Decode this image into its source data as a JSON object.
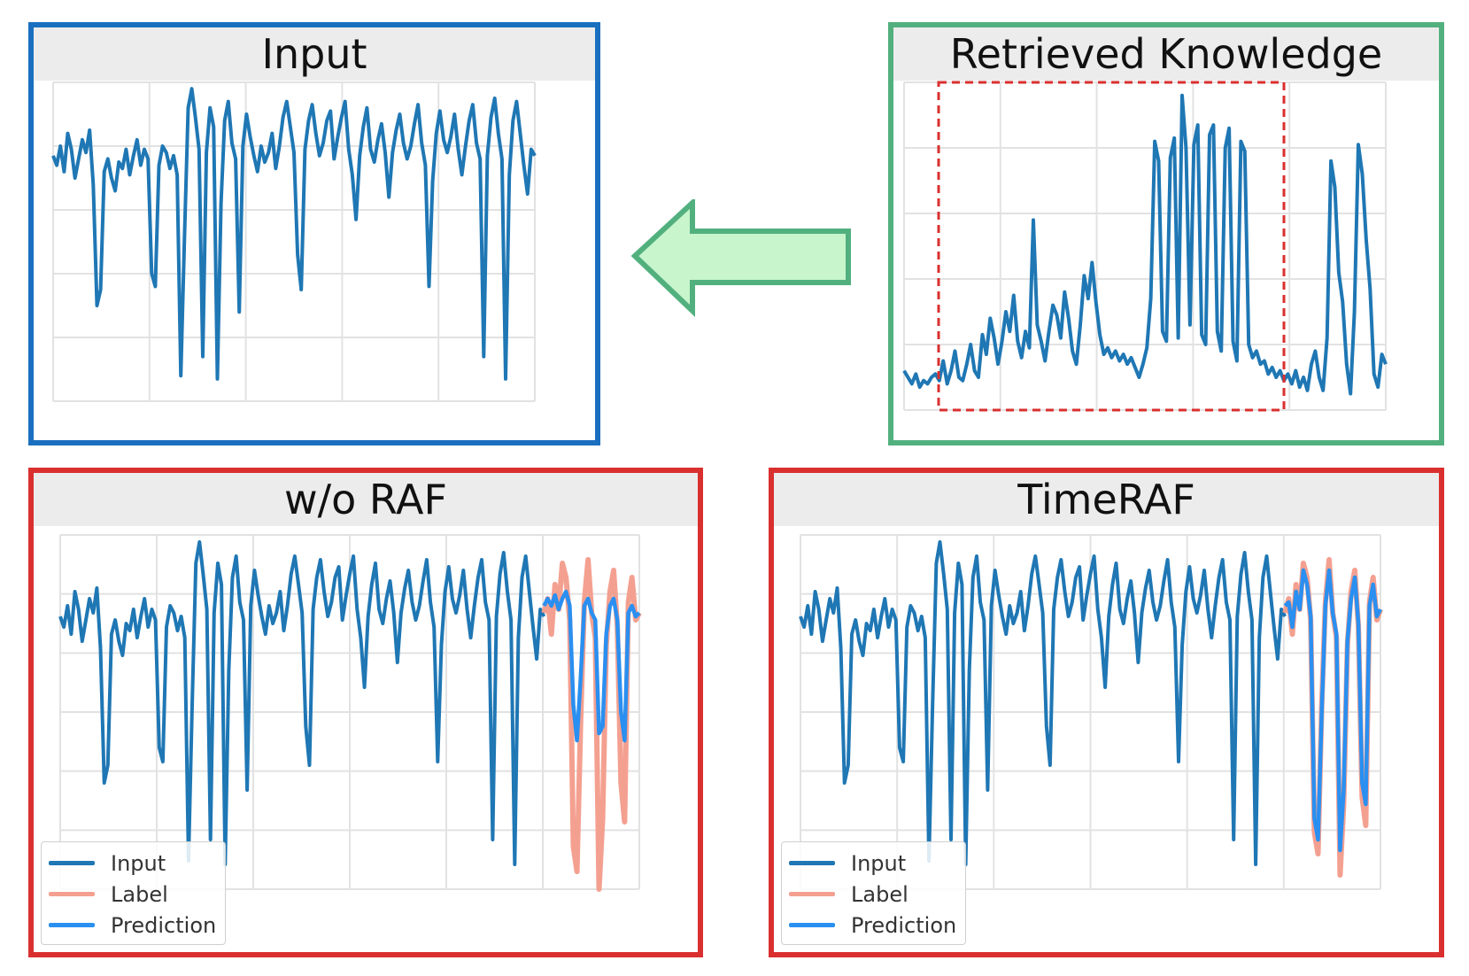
{
  "panels": {
    "input": {
      "title": "Input"
    },
    "knowledge": {
      "title": "Retrieved Knowledge"
    },
    "worag": {
      "title": "w/o RAF"
    },
    "timeraf": {
      "title": "TimeRAF"
    }
  },
  "legend": {
    "input": "Input",
    "label": "Label",
    "prediction": "Prediction"
  },
  "colors": {
    "input_border": "#1a6fbf",
    "knowledge_border": "#52b07f",
    "result_border": "#d9302f",
    "series_input": "#1f77b4",
    "series_label": "#f4a090",
    "series_prediction": "#2a8ff0",
    "arrow_fill": "#c8f5cc",
    "arrow_stroke": "#52b07f",
    "highlight_box": "#d9302f"
  },
  "chart_data": [
    {
      "type": "line",
      "title": "Input",
      "series": [
        {
          "name": "",
          "values": [
            0.77,
            0.74,
            0.8,
            0.72,
            0.84,
            0.79,
            0.7,
            0.76,
            0.82,
            0.78,
            0.85,
            0.68,
            0.3,
            0.35,
            0.72,
            0.76,
            0.7,
            0.66,
            0.75,
            0.73,
            0.79,
            0.71,
            0.77,
            0.82,
            0.74,
            0.79,
            0.76,
            0.4,
            0.36,
            0.74,
            0.8,
            0.78,
            0.73,
            0.77,
            0.71,
            0.08,
            0.52,
            0.92,
            0.98,
            0.89,
            0.79,
            0.14,
            0.78,
            0.92,
            0.86,
            0.07,
            0.62,
            0.88,
            0.94,
            0.81,
            0.76,
            0.28,
            0.8,
            0.9,
            0.83,
            0.77,
            0.72,
            0.8,
            0.75,
            0.78,
            0.84,
            0.73,
            0.8,
            0.89,
            0.94,
            0.86,
            0.78,
            0.46,
            0.35,
            0.79,
            0.88,
            0.93,
            0.84,
            0.77,
            0.81,
            0.88,
            0.91,
            0.76,
            0.83,
            0.89,
            0.94,
            0.79,
            0.71,
            0.57,
            0.77,
            0.86,
            0.92,
            0.79,
            0.75,
            0.82,
            0.87,
            0.78,
            0.64,
            0.78,
            0.85,
            0.9,
            0.81,
            0.76,
            0.8,
            0.87,
            0.93,
            0.81,
            0.74,
            0.36,
            0.69,
            0.84,
            0.91,
            0.82,
            0.78,
            0.83,
            0.9,
            0.79,
            0.71,
            0.8,
            0.88,
            0.93,
            0.81,
            0.76,
            0.14,
            0.77,
            0.89,
            0.95,
            0.84,
            0.76,
            0.07,
            0.71,
            0.88,
            0.94,
            0.84,
            0.74,
            0.65,
            0.79,
            0.77
          ]
        }
      ]
    },
    {
      "type": "line",
      "title": "Retrieved Knowledge",
      "series": [
        {
          "name": "",
          "values": [
            0.12,
            0.1,
            0.08,
            0.11,
            0.07,
            0.09,
            0.08,
            0.1,
            0.11,
            0.09,
            0.15,
            0.08,
            0.12,
            0.18,
            0.1,
            0.09,
            0.14,
            0.2,
            0.12,
            0.1,
            0.23,
            0.17,
            0.28,
            0.22,
            0.14,
            0.21,
            0.3,
            0.24,
            0.35,
            0.21,
            0.16,
            0.24,
            0.19,
            0.58,
            0.26,
            0.21,
            0.15,
            0.24,
            0.32,
            0.29,
            0.22,
            0.36,
            0.28,
            0.18,
            0.14,
            0.26,
            0.41,
            0.34,
            0.45,
            0.33,
            0.23,
            0.17,
            0.19,
            0.16,
            0.18,
            0.15,
            0.17,
            0.14,
            0.16,
            0.13,
            0.1,
            0.14,
            0.19,
            0.34,
            0.82,
            0.76,
            0.24,
            0.21,
            0.77,
            0.83,
            0.22,
            0.96,
            0.8,
            0.26,
            0.81,
            0.87,
            0.23,
            0.2,
            0.84,
            0.87,
            0.24,
            0.18,
            0.8,
            0.86,
            0.21,
            0.15,
            0.82,
            0.79,
            0.2,
            0.16,
            0.18,
            0.14,
            0.15,
            0.11,
            0.13,
            0.1,
            0.12,
            0.09,
            0.11,
            0.08,
            0.12,
            0.07,
            0.1,
            0.06,
            0.14,
            0.18,
            0.1,
            0.06,
            0.22,
            0.76,
            0.68,
            0.42,
            0.33,
            0.14,
            0.05,
            0.3,
            0.81,
            0.72,
            0.52,
            0.37,
            0.11,
            0.07,
            0.17,
            0.14
          ]
        }
      ]
    },
    {
      "type": "line",
      "title": "w/o RAF",
      "legend": "bottom-left",
      "series": [
        {
          "name": "Input",
          "values": [
            0.77,
            0.74,
            0.8,
            0.72,
            0.84,
            0.79,
            0.7,
            0.76,
            0.82,
            0.78,
            0.85,
            0.68,
            0.3,
            0.35,
            0.72,
            0.76,
            0.7,
            0.66,
            0.75,
            0.73,
            0.79,
            0.71,
            0.77,
            0.82,
            0.74,
            0.79,
            0.76,
            0.4,
            0.36,
            0.74,
            0.8,
            0.78,
            0.73,
            0.77,
            0.71,
            0.08,
            0.52,
            0.92,
            0.98,
            0.89,
            0.79,
            0.14,
            0.78,
            0.92,
            0.86,
            0.07,
            0.62,
            0.88,
            0.94,
            0.81,
            0.76,
            0.28,
            0.8,
            0.9,
            0.83,
            0.77,
            0.72,
            0.8,
            0.75,
            0.78,
            0.84,
            0.73,
            0.8,
            0.89,
            0.94,
            0.86,
            0.78,
            0.46,
            0.35,
            0.79,
            0.88,
            0.93,
            0.84,
            0.77,
            0.81,
            0.88,
            0.91,
            0.76,
            0.83,
            0.89,
            0.94,
            0.79,
            0.71,
            0.57,
            0.77,
            0.86,
            0.92,
            0.79,
            0.75,
            0.82,
            0.87,
            0.78,
            0.64,
            0.78,
            0.85,
            0.9,
            0.81,
            0.76,
            0.8,
            0.87,
            0.93,
            0.81,
            0.74,
            0.36,
            0.69,
            0.84,
            0.91,
            0.82,
            0.78,
            0.83,
            0.9,
            0.79,
            0.71,
            0.8,
            0.88,
            0.93,
            0.81,
            0.76,
            0.14,
            0.77,
            0.89,
            0.95,
            0.84,
            0.76,
            0.07,
            0.71,
            0.88,
            0.94,
            0.84,
            0.74,
            0.65,
            0.79,
            0.77
          ]
        },
        {
          "name": "Label",
          "values": [
            0.78,
            0.82,
            0.72,
            0.86,
            0.79,
            0.92,
            0.88,
            0.76,
            0.12,
            0.05,
            0.48,
            0.81,
            0.93,
            0.78,
            0.71,
            0.0,
            0.2,
            0.69,
            0.84,
            0.9,
            0.74,
            0.3,
            0.19,
            0.81,
            0.88,
            0.76,
            0.78
          ]
        },
        {
          "name": "Prediction",
          "values": [
            0.8,
            0.82,
            0.8,
            0.83,
            0.79,
            0.82,
            0.84,
            0.8,
            0.52,
            0.42,
            0.6,
            0.8,
            0.82,
            0.78,
            0.76,
            0.44,
            0.46,
            0.72,
            0.8,
            0.82,
            0.76,
            0.5,
            0.42,
            0.78,
            0.8,
            0.77,
            0.78
          ]
        }
      ]
    },
    {
      "type": "line",
      "title": "TimeRAF",
      "legend": "bottom-left",
      "series": [
        {
          "name": "Input",
          "values": [
            0.77,
            0.74,
            0.8,
            0.72,
            0.84,
            0.79,
            0.7,
            0.76,
            0.82,
            0.78,
            0.85,
            0.68,
            0.3,
            0.35,
            0.72,
            0.76,
            0.7,
            0.66,
            0.75,
            0.73,
            0.79,
            0.71,
            0.77,
            0.82,
            0.74,
            0.79,
            0.76,
            0.4,
            0.36,
            0.74,
            0.8,
            0.78,
            0.73,
            0.77,
            0.71,
            0.08,
            0.52,
            0.92,
            0.98,
            0.89,
            0.79,
            0.14,
            0.78,
            0.92,
            0.86,
            0.07,
            0.62,
            0.88,
            0.94,
            0.81,
            0.76,
            0.28,
            0.8,
            0.9,
            0.83,
            0.77,
            0.72,
            0.8,
            0.75,
            0.78,
            0.84,
            0.73,
            0.8,
            0.89,
            0.94,
            0.86,
            0.78,
            0.46,
            0.35,
            0.79,
            0.88,
            0.93,
            0.84,
            0.77,
            0.81,
            0.88,
            0.91,
            0.76,
            0.83,
            0.89,
            0.94,
            0.79,
            0.71,
            0.57,
            0.77,
            0.86,
            0.92,
            0.79,
            0.75,
            0.82,
            0.87,
            0.78,
            0.64,
            0.78,
            0.85,
            0.9,
            0.81,
            0.76,
            0.8,
            0.87,
            0.93,
            0.81,
            0.74,
            0.36,
            0.69,
            0.84,
            0.91,
            0.82,
            0.78,
            0.83,
            0.9,
            0.79,
            0.71,
            0.8,
            0.88,
            0.93,
            0.81,
            0.76,
            0.14,
            0.77,
            0.89,
            0.95,
            0.84,
            0.76,
            0.07,
            0.71,
            0.88,
            0.94,
            0.84,
            0.74,
            0.65,
            0.79,
            0.77
          ]
        },
        {
          "name": "Label",
          "values": [
            0.78,
            0.82,
            0.72,
            0.86,
            0.79,
            0.92,
            0.88,
            0.76,
            0.16,
            0.1,
            0.52,
            0.81,
            0.93,
            0.78,
            0.71,
            0.04,
            0.24,
            0.69,
            0.84,
            0.9,
            0.74,
            0.26,
            0.18,
            0.81,
            0.88,
            0.76,
            0.79
          ]
        },
        {
          "name": "Prediction",
          "values": [
            0.8,
            0.81,
            0.74,
            0.84,
            0.79,
            0.9,
            0.86,
            0.77,
            0.2,
            0.14,
            0.5,
            0.8,
            0.9,
            0.78,
            0.72,
            0.11,
            0.28,
            0.7,
            0.82,
            0.88,
            0.75,
            0.3,
            0.24,
            0.8,
            0.86,
            0.77,
            0.79
          ]
        }
      ]
    }
  ]
}
